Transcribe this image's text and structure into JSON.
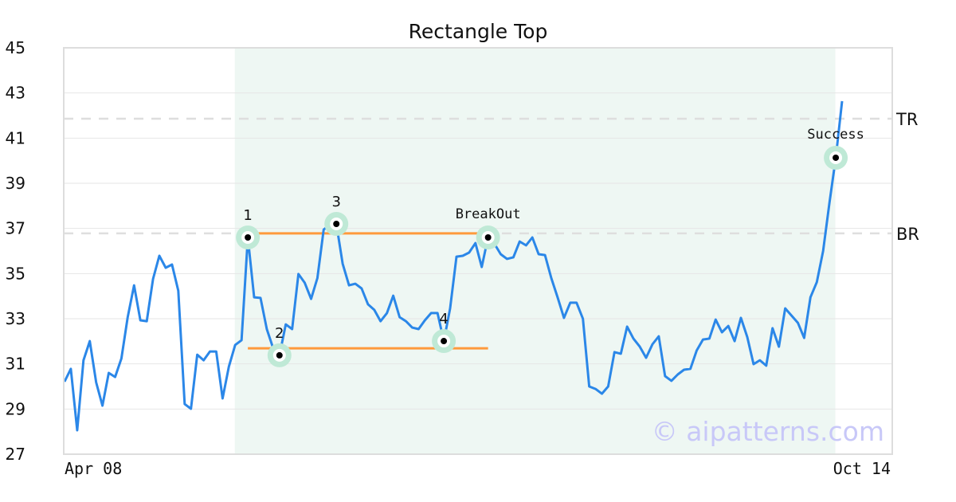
{
  "chart_data": {
    "type": "line",
    "title": "Rectangle Top",
    "ylim": [
      27,
      45
    ],
    "yticks": [
      27,
      29,
      31,
      33,
      35,
      37,
      39,
      41,
      43,
      45
    ],
    "xtick_labels": [
      "Apr 08",
      "Oct 14"
    ],
    "grid": true,
    "series_color": "#2b87e8",
    "values": [
      30.21,
      30.78,
      28.06,
      31.16,
      32.01,
      30.18,
      29.15,
      30.6,
      30.42,
      31.24,
      33.07,
      34.48,
      32.93,
      32.89,
      34.76,
      35.79,
      35.26,
      35.4,
      34.24,
      29.22,
      29.01,
      31.41,
      31.16,
      31.55,
      31.55,
      29.47,
      30.88,
      31.84,
      32.05,
      36.6,
      33.95,
      33.92,
      32.54,
      31.69,
      31.38,
      32.75,
      32.54,
      34.98,
      34.59,
      33.88,
      34.8,
      36.95,
      37.16,
      37.2,
      35.44,
      34.48,
      34.55,
      34.34,
      33.64,
      33.39,
      32.89,
      33.25,
      34.02,
      33.07,
      32.89,
      32.61,
      32.54,
      32.93,
      33.25,
      33.25,
      32.01,
      33.46,
      35.75,
      35.79,
      35.93,
      36.35,
      35.29,
      36.6,
      36.32,
      35.86,
      35.65,
      35.72,
      36.42,
      36.25,
      36.6,
      35.86,
      35.82,
      34.8,
      33.95,
      33.04,
      33.71,
      33.71,
      33.0,
      30.0,
      29.89,
      29.68,
      30.0,
      31.52,
      31.45,
      32.65,
      32.12,
      31.76,
      31.27,
      31.87,
      32.22,
      30.46,
      30.25,
      30.53,
      30.74,
      30.78,
      31.59,
      32.08,
      32.12,
      32.96,
      32.4,
      32.68,
      32.01,
      33.04,
      32.19,
      30.99,
      31.16,
      30.92,
      32.58,
      31.76,
      33.46,
      33.14,
      32.82,
      32.15,
      33.95,
      34.62,
      36.0,
      38.12,
      40.13,
      42.64
    ],
    "pattern_region": {
      "start_index": 27,
      "end_index": 122,
      "color": "#eef7f3"
    },
    "resistance_line": {
      "value": 36.78,
      "start_index": 29,
      "end_index": 67,
      "color": "#ff9a3c"
    },
    "support_line": {
      "value": 31.69,
      "start_index": 29,
      "end_index": 67,
      "color": "#ff9a3c"
    },
    "reference_lines": [
      {
        "label": "TR",
        "value": 41.86
      },
      {
        "label": "BR",
        "value": 36.78
      }
    ],
    "markers": [
      {
        "label": "1",
        "index": 29,
        "value": 36.6
      },
      {
        "label": "2",
        "index": 34,
        "value": 31.38
      },
      {
        "label": "3",
        "index": 43,
        "value": 37.2
      },
      {
        "label": "4",
        "index": 60,
        "value": 32.01
      },
      {
        "label": "BreakOut",
        "index": 67,
        "value": 36.6
      },
      {
        "label": "Success",
        "index": 122,
        "value": 40.13
      }
    ],
    "watermark": "© aipatterns.com"
  }
}
